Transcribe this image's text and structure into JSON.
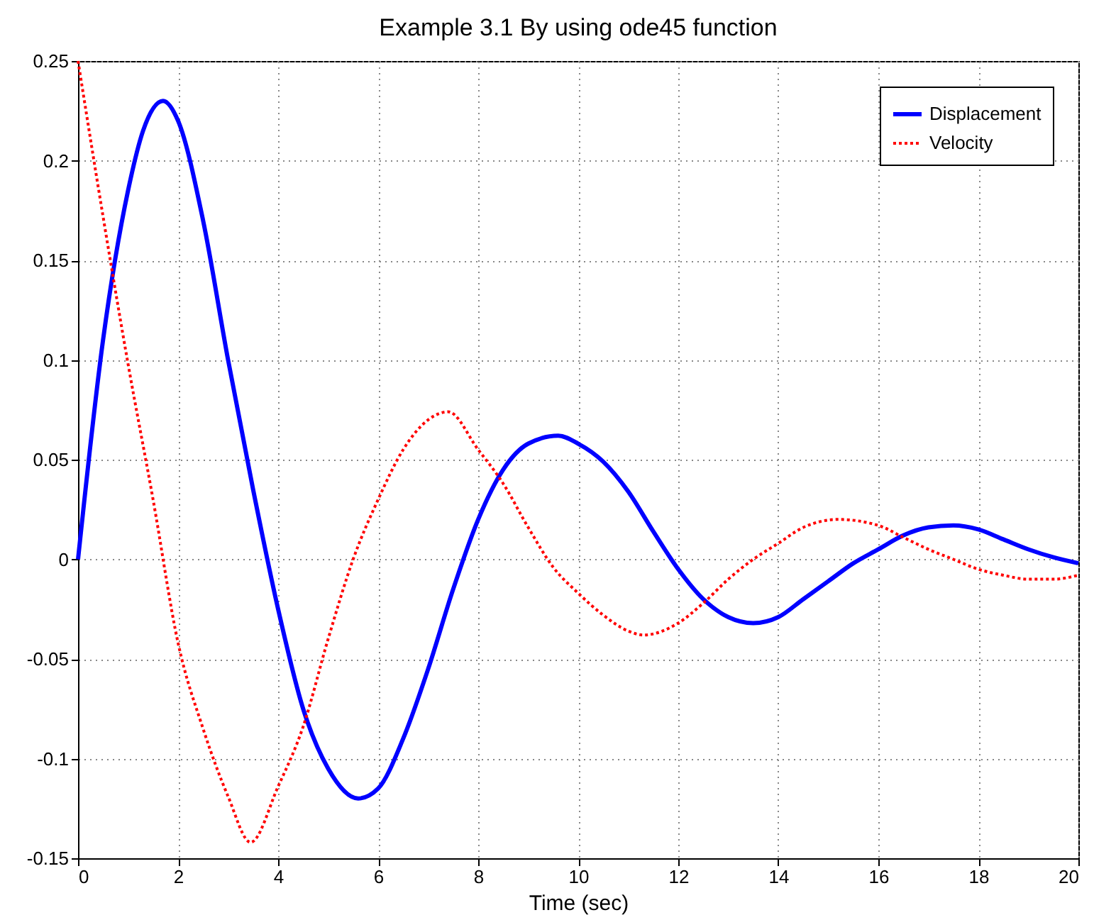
{
  "chart_data": {
    "type": "line",
    "title": "Example 3.1 By using ode45 function",
    "xlabel": "Time (sec)",
    "x": [
      0,
      0.5,
      1,
      1.3,
      1.7,
      2,
      2.5,
      3,
      3.5,
      4,
      4.5,
      5,
      5.6,
      6,
      6.5,
      7,
      7.5,
      8,
      8.5,
      9,
      9.6,
      10,
      10.5,
      11,
      11.5,
      12,
      12.5,
      13,
      13.5,
      14,
      14.5,
      15,
      15.5,
      16,
      16.5,
      17,
      17.5,
      18,
      18.5,
      19,
      19.5,
      20
    ],
    "series": [
      {
        "name": "Displacement",
        "color": "#0000ff",
        "line_style": "solid",
        "values": [
          0,
          0.11,
          0.185,
          0.215,
          0.23,
          0.22,
          0.17,
          0.1,
          0.035,
          -0.025,
          -0.075,
          -0.105,
          -0.12,
          -0.115,
          -0.09,
          -0.055,
          -0.015,
          0.02,
          0.045,
          0.058,
          0.062,
          0.058,
          0.049,
          0.034,
          0.014,
          -0.005,
          -0.02,
          -0.029,
          -0.032,
          -0.029,
          -0.02,
          -0.011,
          -0.002,
          0.005,
          0.012,
          0.016,
          0.017,
          0.015,
          0.01,
          0.005,
          0.001,
          -0.002
        ]
      },
      {
        "name": "Velocity",
        "color": "#ff0000",
        "line_style": "dotted",
        "x": [
          0,
          0.5,
          1,
          1.5,
          2,
          2.5,
          3,
          3.45,
          4,
          4.5,
          5,
          5.5,
          6,
          6.5,
          7,
          7.4,
          8,
          8.5,
          9,
          9.5,
          10,
          10.5,
          11,
          11.3,
          12,
          12.5,
          13,
          13.5,
          14,
          14.5,
          15.2,
          16,
          16.5,
          17,
          17.5,
          18,
          18.5,
          19,
          19.5,
          20
        ],
        "values": [
          0.25,
          0.172,
          0.098,
          0.03,
          -0.042,
          -0.085,
          -0.119,
          -0.142,
          -0.114,
          -0.084,
          -0.04,
          0,
          0.03,
          0.055,
          0.07,
          0.074,
          0.055,
          0.038,
          0.016,
          -0.004,
          -0.017,
          -0.028,
          -0.036,
          -0.038,
          -0.032,
          -0.022,
          -0.01,
          0,
          0.008,
          0.016,
          0.02,
          0.017,
          0.011,
          0.005,
          0,
          -0.005,
          -0.008,
          -0.01,
          -0.01,
          -0.008
        ]
      }
    ],
    "xlim": [
      0,
      20
    ],
    "xticks": [
      0,
      2,
      4,
      6,
      8,
      10,
      12,
      14,
      16,
      18,
      20
    ],
    "ylim": [
      -0.15,
      0.25
    ],
    "yticks": [
      -0.15,
      -0.1,
      -0.05,
      0,
      0.05,
      0.1,
      0.15,
      0.2,
      0.25
    ],
    "grid": true,
    "legend": "top right"
  }
}
